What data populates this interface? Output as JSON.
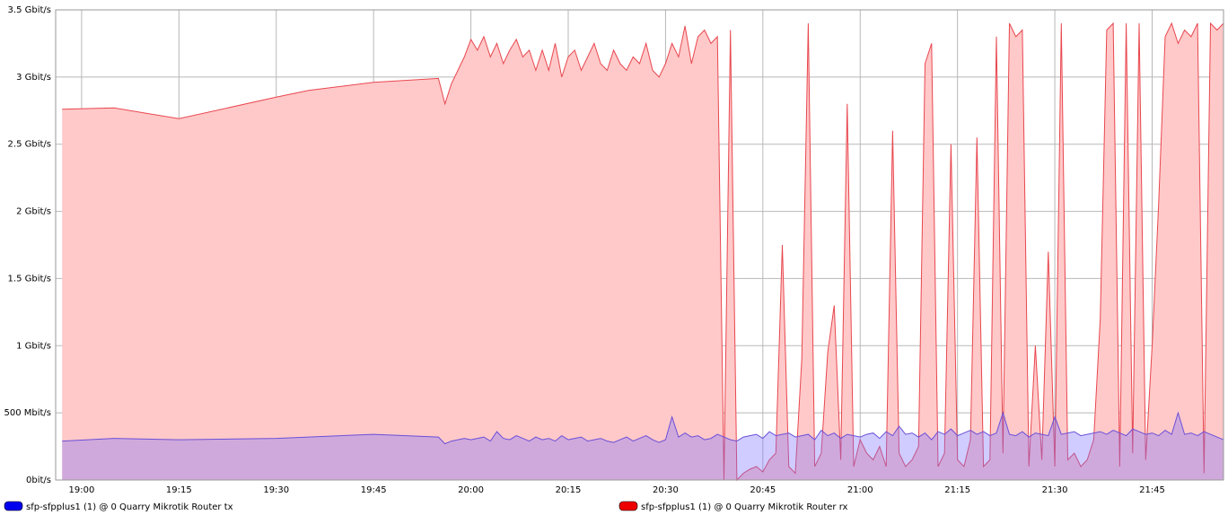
{
  "chart_data": {
    "type": "area",
    "x": [
      "18:57",
      "19:05",
      "19:15",
      "19:30",
      "19:35",
      "19:45",
      "19:55",
      "19:56",
      "19:57",
      "19:58",
      "19:59",
      "20:00",
      "20:01",
      "20:02",
      "20:03",
      "20:04",
      "20:05",
      "20:06",
      "20:07",
      "20:08",
      "20:09",
      "20:10",
      "20:11",
      "20:12",
      "20:13",
      "20:14",
      "20:15",
      "20:16",
      "20:17",
      "20:18",
      "20:19",
      "20:20",
      "20:21",
      "20:22",
      "20:23",
      "20:24",
      "20:25",
      "20:26",
      "20:27",
      "20:28",
      "20:29",
      "20:30",
      "20:31",
      "20:32",
      "20:33",
      "20:34",
      "20:35",
      "20:36",
      "20:37",
      "20:38",
      "20:39",
      "20:40",
      "20:41",
      "20:42",
      "20:43",
      "20:44",
      "20:45",
      "20:46",
      "20:47",
      "20:48",
      "20:49",
      "20:50",
      "20:51",
      "20:52",
      "20:53",
      "20:54",
      "20:55",
      "20:56",
      "20:57",
      "20:58",
      "20:59",
      "21:00",
      "21:01",
      "21:02",
      "21:03",
      "21:04",
      "21:05",
      "21:06",
      "21:07",
      "21:08",
      "21:09",
      "21:10",
      "21:11",
      "21:12",
      "21:13",
      "21:14",
      "21:15",
      "21:16",
      "21:17",
      "21:18",
      "21:19",
      "21:20",
      "21:21",
      "21:22",
      "21:23",
      "21:24",
      "21:25",
      "21:26",
      "21:27",
      "21:28",
      "21:29",
      "21:30",
      "21:31",
      "21:32",
      "21:33",
      "21:34",
      "21:35",
      "21:36",
      "21:37",
      "21:38",
      "21:39",
      "21:40",
      "21:41",
      "21:42",
      "21:43",
      "21:44",
      "21:45",
      "21:46",
      "21:47",
      "21:48",
      "21:49",
      "21:50",
      "21:51",
      "21:52",
      "21:53",
      "21:54",
      "21:55",
      "21:56"
    ],
    "series": [
      {
        "name": "sfp-sfpplus1 (1) @ 0 Quarry Mikrotik Router rx",
        "color": "#e8474f",
        "fill": "#ffc9c9",
        "legend_color": "#ee0000",
        "values": [
          2760,
          2770,
          2690,
          2850,
          2900,
          2960,
          2990,
          2800,
          2950,
          3050,
          3150,
          3280,
          3200,
          3300,
          3150,
          3250,
          3100,
          3200,
          3280,
          3150,
          3200,
          3050,
          3200,
          3050,
          3250,
          3000,
          3150,
          3200,
          3050,
          3150,
          3250,
          3100,
          3050,
          3200,
          3100,
          3050,
          3150,
          3100,
          3250,
          3050,
          3000,
          3100,
          3250,
          3150,
          3380,
          3100,
          3300,
          3350,
          3250,
          3300,
          0,
          3350,
          0,
          50,
          80,
          100,
          60,
          150,
          200,
          1750,
          100,
          50,
          900,
          3400,
          100,
          200,
          950,
          1300,
          150,
          2800,
          100,
          300,
          200,
          150,
          250,
          100,
          2600,
          200,
          100,
          150,
          250,
          3100,
          3250,
          100,
          200,
          2500,
          150,
          100,
          300,
          2550,
          100,
          150,
          3300,
          200,
          3400,
          3300,
          3350,
          100,
          1000,
          150,
          1700,
          100,
          3400,
          150,
          200,
          100,
          150,
          300,
          1200,
          3350,
          3400,
          100,
          3400,
          200,
          3400,
          150,
          1000,
          2050,
          3300,
          3400,
          3250,
          3350,
          3300,
          3400,
          50,
          3400,
          3350,
          3400
        ]
      },
      {
        "name": "sfp-sfpplus1 (1) @ 0 Quarry Mikrotik Router tx",
        "color": "#6a4fd8",
        "fill": "rgba(120,110,255,0.35)",
        "legend_color": "#0000ee",
        "values": [
          290,
          310,
          300,
          310,
          320,
          340,
          320,
          270,
          290,
          300,
          310,
          300,
          310,
          320,
          290,
          360,
          310,
          300,
          330,
          310,
          290,
          320,
          300,
          310,
          290,
          330,
          300,
          310,
          320,
          290,
          300,
          310,
          290,
          280,
          300,
          320,
          290,
          310,
          330,
          300,
          280,
          300,
          470,
          320,
          350,
          320,
          330,
          300,
          310,
          340,
          320,
          300,
          290,
          320,
          330,
          340,
          310,
          360,
          330,
          340,
          350,
          320,
          330,
          340,
          300,
          370,
          330,
          350,
          310,
          340,
          330,
          320,
          340,
          350,
          310,
          360,
          330,
          400,
          340,
          350,
          320,
          350,
          300,
          360,
          340,
          380,
          330,
          350,
          370,
          340,
          360,
          330,
          350,
          500,
          340,
          330,
          360,
          320,
          350,
          340,
          330,
          470,
          340,
          350,
          360,
          330,
          340,
          350,
          360,
          340,
          370,
          350,
          330,
          380,
          360,
          340,
          350,
          330,
          370,
          340,
          500,
          340,
          350,
          330,
          360,
          340,
          320,
          300
        ]
      }
    ],
    "legend_order": [
      1,
      0
    ],
    "xlim": [
      "18:56",
      "21:56"
    ],
    "xticks": [
      "19:00",
      "19:15",
      "19:30",
      "19:45",
      "20:00",
      "20:15",
      "20:30",
      "20:45",
      "21:00",
      "21:15",
      "21:30",
      "21:45"
    ],
    "ylim": [
      0,
      3500
    ],
    "yticks": [
      {
        "value": 0,
        "label": "0bit/s"
      },
      {
        "value": 500,
        "label": "500 Mbit/s"
      },
      {
        "value": 1000,
        "label": "1 Gbit/s"
      },
      {
        "value": 1500,
        "label": "1.5 Gbit/s"
      },
      {
        "value": 2000,
        "label": "2 Gbit/s"
      },
      {
        "value": 2500,
        "label": "2.5 Gbit/s"
      },
      {
        "value": 3000,
        "label": "3 Gbit/s"
      },
      {
        "value": 3500,
        "label": "3.5 Gbit/s"
      }
    ],
    "grid": true
  }
}
